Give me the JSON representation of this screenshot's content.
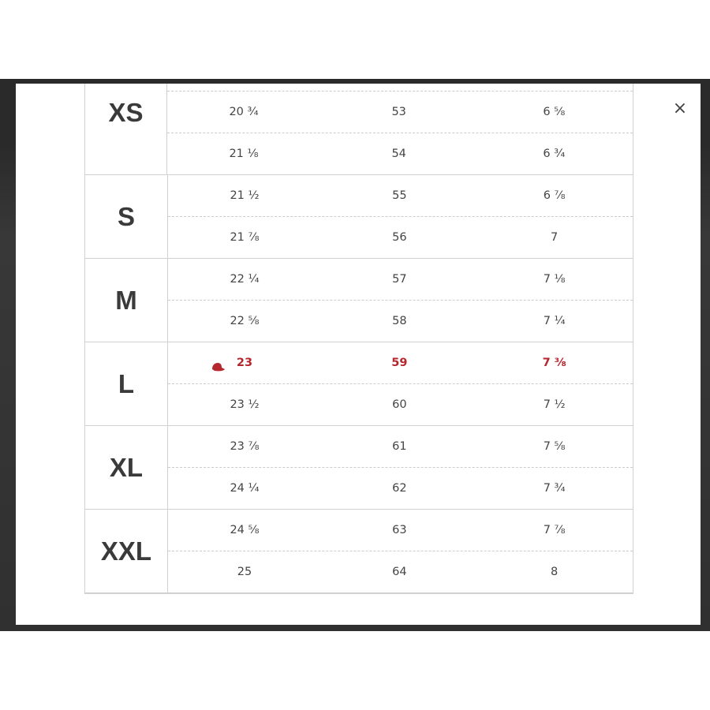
{
  "modal": {
    "close_label": "×"
  },
  "accent_color": "#b5262e",
  "groups": [
    {
      "size": "XS",
      "rows": [
        [
          "20 ¾",
          "53",
          "6 ⅝"
        ],
        [
          "21 ⅛",
          "54",
          "6 ¾"
        ]
      ]
    },
    {
      "size": "S",
      "rows": [
        [
          "21 ½",
          "55",
          "6 ⅞"
        ],
        [
          "21 ⅞",
          "56",
          "7"
        ]
      ]
    },
    {
      "size": "M",
      "rows": [
        [
          "22 ¼",
          "57",
          "7 ⅛"
        ],
        [
          "22 ⅝",
          "58",
          "7 ¼"
        ]
      ]
    },
    {
      "size": "L",
      "rows": [
        [
          "23",
          "59",
          "7 ⅜"
        ],
        [
          "23 ½",
          "60",
          "7 ½"
        ]
      ],
      "highlight_row": 0,
      "highlight_icon": "cap-icon"
    },
    {
      "size": "XL",
      "rows": [
        [
          "23 ⅞",
          "61",
          "7 ⅝"
        ],
        [
          "24 ¼",
          "62",
          "7 ¾"
        ]
      ]
    },
    {
      "size": "XXL",
      "rows": [
        [
          "24 ⅝",
          "63",
          "7 ⅞"
        ],
        [
          "25",
          "64",
          "8"
        ]
      ]
    }
  ]
}
